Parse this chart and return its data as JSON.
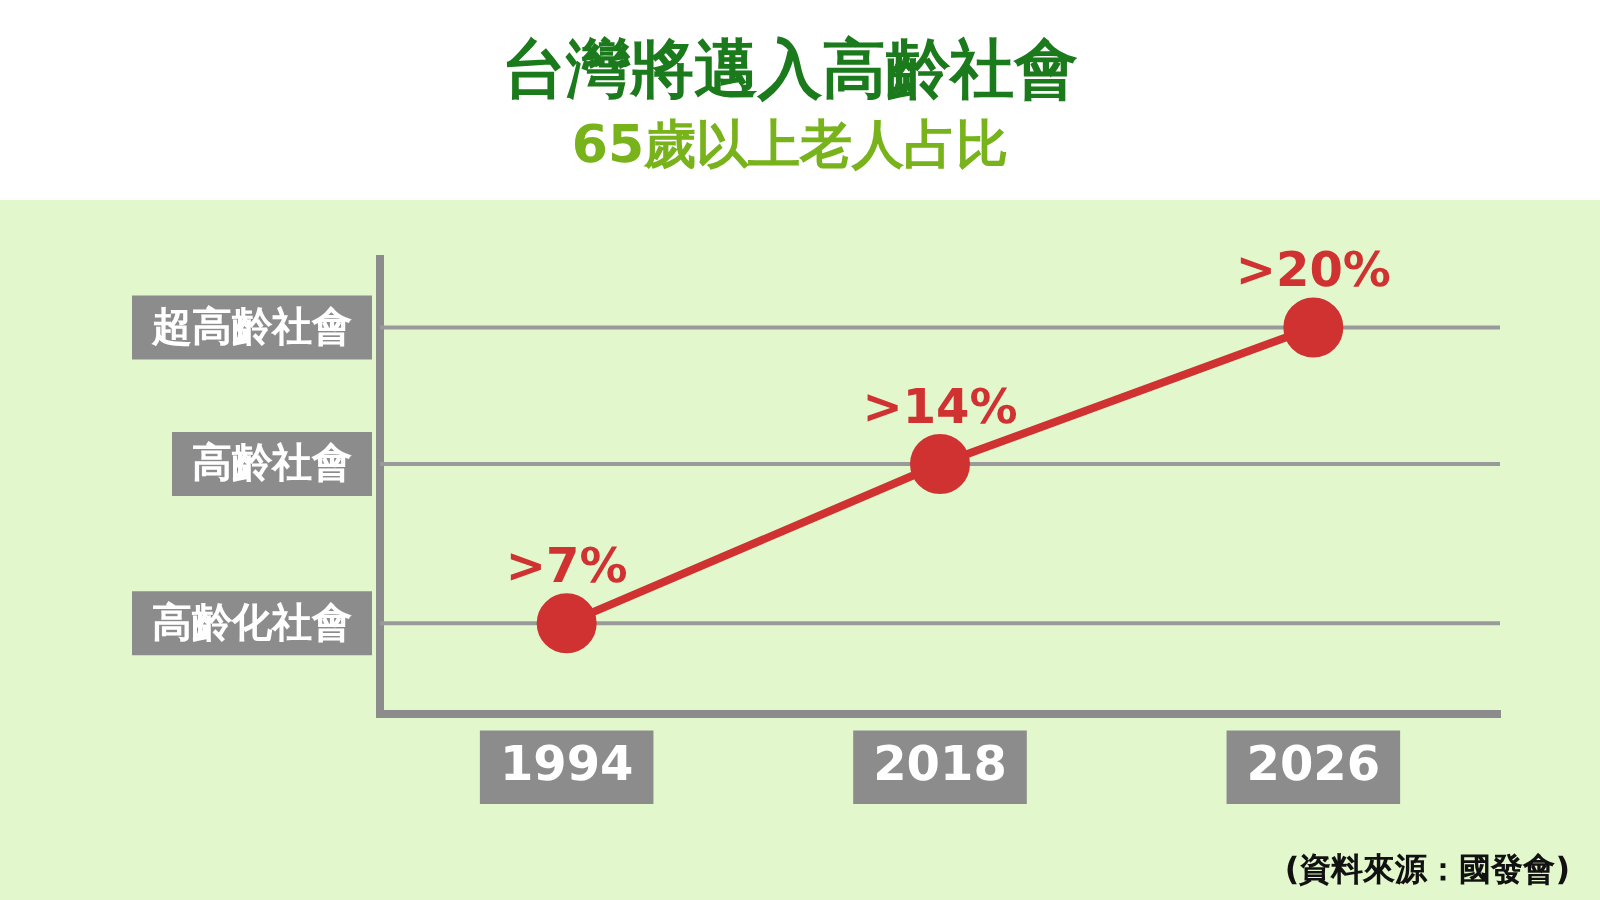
{
  "chart_data": {
    "type": "line",
    "title": "台灣將邁入高齡社會",
    "subtitle": "65歲以上老人占比",
    "categories": [
      "1994",
      "2018",
      "2026"
    ],
    "series": [
      {
        "color": "#d03232",
        "values": [
          7,
          14,
          20
        ],
        "value_labels": [
          ">7%",
          ">14%",
          ">20%"
        ]
      }
    ],
    "ylim": [
      3,
      23
    ],
    "ref_lines": [
      {
        "axis": "y",
        "value": 7,
        "label": "高齡化社會",
        "color": "#9a9a9a"
      },
      {
        "axis": "y",
        "value": 14,
        "label": "高齡社會",
        "color": "#9a9a9a"
      },
      {
        "axis": "y",
        "value": 20,
        "label": "超高齡社會",
        "color": "#9a9a9a"
      }
    ],
    "legend": false,
    "marker": "circle",
    "line_style": "solid",
    "annotations": [
      "(資料來源：國發會)"
    ]
  }
}
